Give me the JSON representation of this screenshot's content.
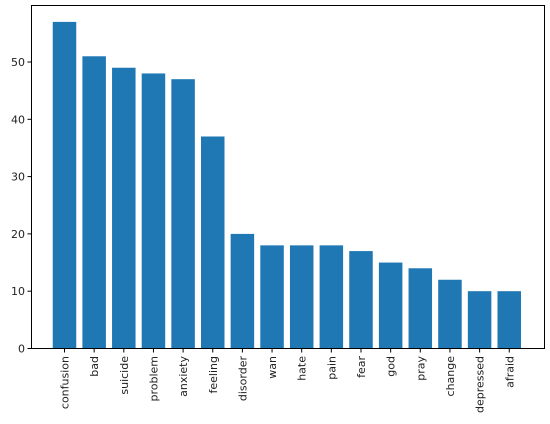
{
  "chart_data": {
    "type": "bar",
    "title": "",
    "xlabel": "",
    "ylabel": "",
    "categories": [
      "confusion",
      "bad",
      "suicide",
      "problem",
      "anxiety",
      "feeling",
      "disorder",
      "wan",
      "hate",
      "pain",
      "fear",
      "god",
      "pray",
      "change",
      "depressed",
      "afraid"
    ],
    "values": [
      57,
      51,
      49,
      48,
      47,
      37,
      20,
      18,
      18,
      18,
      17,
      15,
      14,
      12,
      10,
      10
    ],
    "ylim": [
      0,
      60
    ],
    "yticks": [
      0,
      10,
      20,
      30,
      40,
      50
    ],
    "bar_color": "#1f77b4",
    "grid": false,
    "xtick_rotation": 90
  }
}
